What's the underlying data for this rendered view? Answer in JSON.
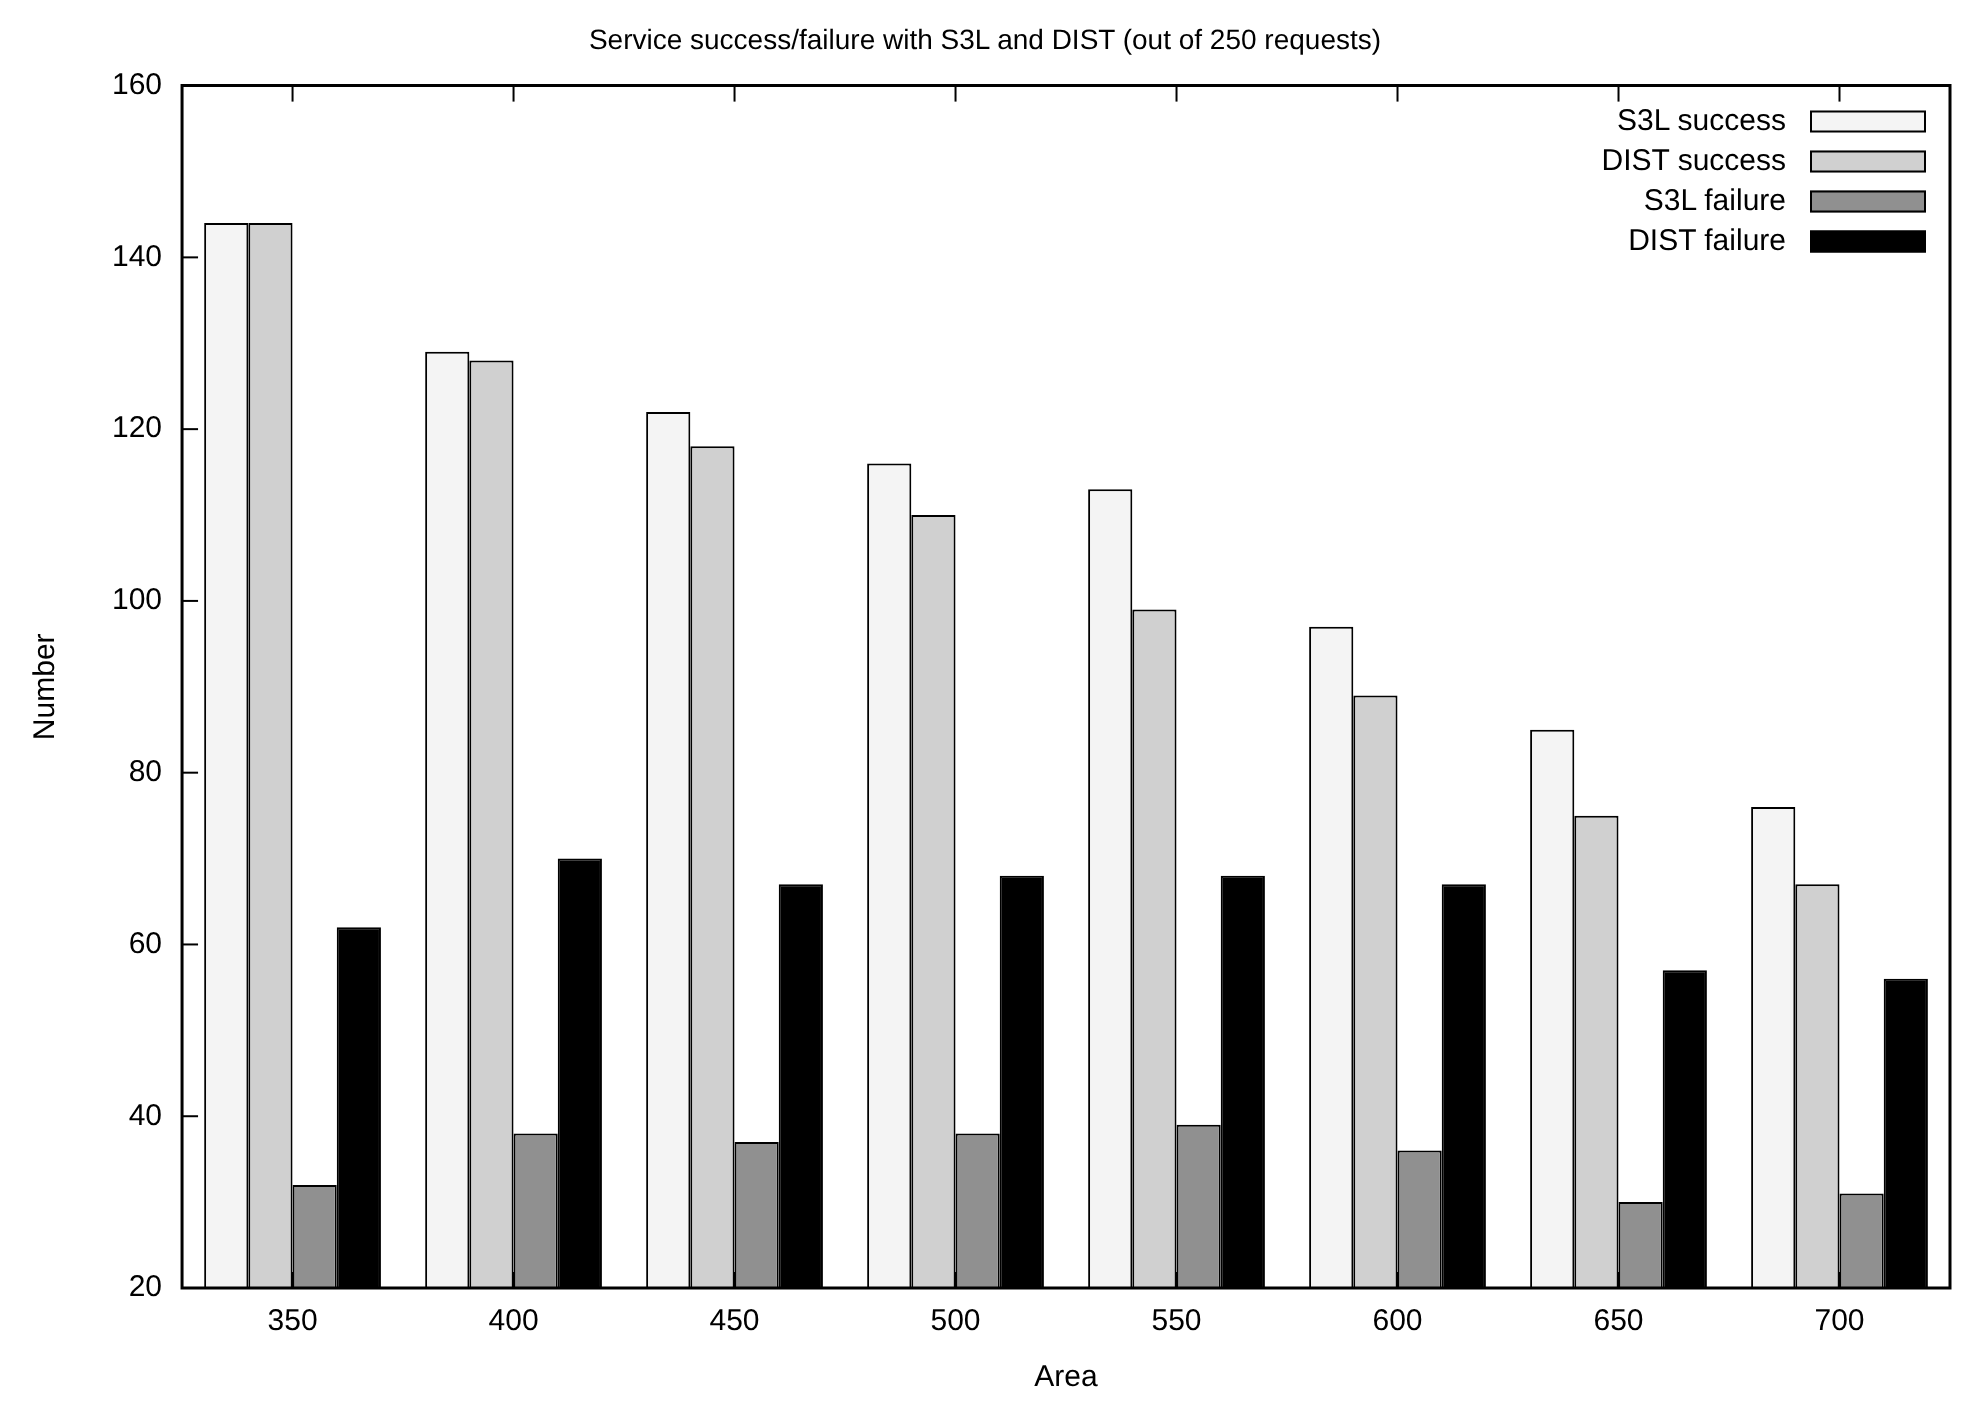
{
  "chart_data": {
    "type": "bar",
    "title": "Service success/failure with S3L and DIST (out of 250 requests)",
    "xlabel": "Area",
    "ylabel": "Number",
    "categories": [
      "350",
      "400",
      "450",
      "500",
      "550",
      "600",
      "650",
      "700"
    ],
    "series": [
      {
        "name": "S3L success",
        "color": "#f4f4f4",
        "values": [
          144,
          129,
          122,
          116,
          113,
          97,
          85,
          76
        ]
      },
      {
        "name": "DIST success",
        "color": "#d0d0d0",
        "values": [
          144,
          128,
          118,
          110,
          99,
          89,
          75,
          67
        ]
      },
      {
        "name": "S3L failure",
        "color": "#909090",
        "values": [
          32,
          38,
          37,
          38,
          39,
          36,
          30,
          31
        ]
      },
      {
        "name": "DIST failure",
        "color": "#000000",
        "values": [
          62,
          70,
          67,
          68,
          68,
          67,
          57,
          56
        ]
      }
    ],
    "ylim": [
      20,
      160
    ],
    "yticks": [
      20,
      40,
      60,
      80,
      100,
      120,
      140,
      160
    ],
    "grid": false,
    "legend": "top right"
  }
}
